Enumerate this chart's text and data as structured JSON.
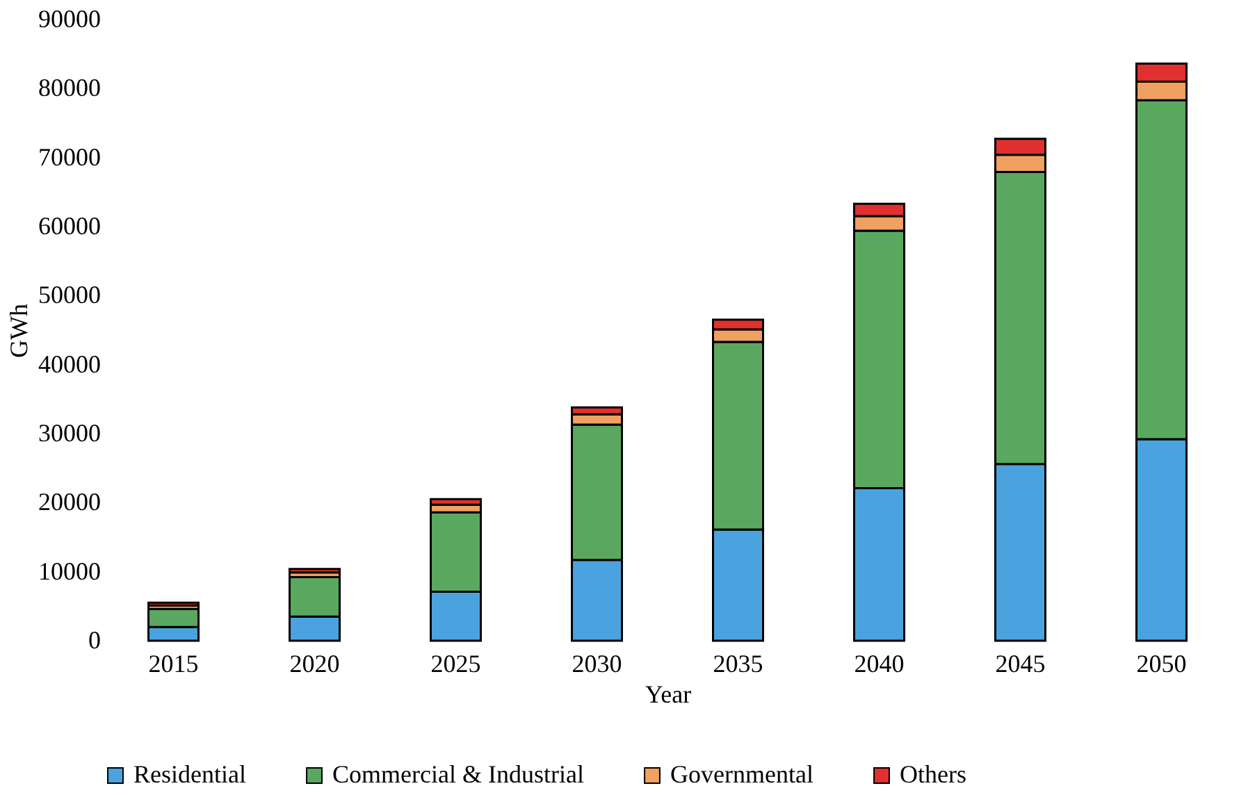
{
  "chart_data": {
    "type": "bar",
    "stacked": true,
    "xlabel": "Year",
    "ylabel": "GWh",
    "categories": [
      "2015",
      "2020",
      "2025",
      "2030",
      "2035",
      "2040",
      "2045",
      "2050"
    ],
    "series": [
      {
        "name": "Residential",
        "color": "#4aa3df",
        "values": [
          2000,
          3500,
          7100,
          11700,
          16100,
          22100,
          25600,
          29200
        ]
      },
      {
        "name": "Commercial & Industrial",
        "color": "#5aa860",
        "values": [
          2600,
          5700,
          11500,
          19600,
          27200,
          37300,
          42300,
          49100
        ]
      },
      {
        "name": "Governmental",
        "color": "#f0a060",
        "values": [
          500,
          700,
          1100,
          1500,
          1800,
          2100,
          2500,
          2700
        ]
      },
      {
        "name": "Others",
        "color": "#e03030",
        "values": [
          400,
          500,
          800,
          1000,
          1400,
          1800,
          2300,
          2600
        ]
      }
    ],
    "ylim": [
      0,
      90000
    ],
    "yticks": [
      0,
      10000,
      20000,
      30000,
      40000,
      50000,
      60000,
      70000,
      80000,
      90000
    ],
    "grid": false,
    "legend": "bottom"
  }
}
